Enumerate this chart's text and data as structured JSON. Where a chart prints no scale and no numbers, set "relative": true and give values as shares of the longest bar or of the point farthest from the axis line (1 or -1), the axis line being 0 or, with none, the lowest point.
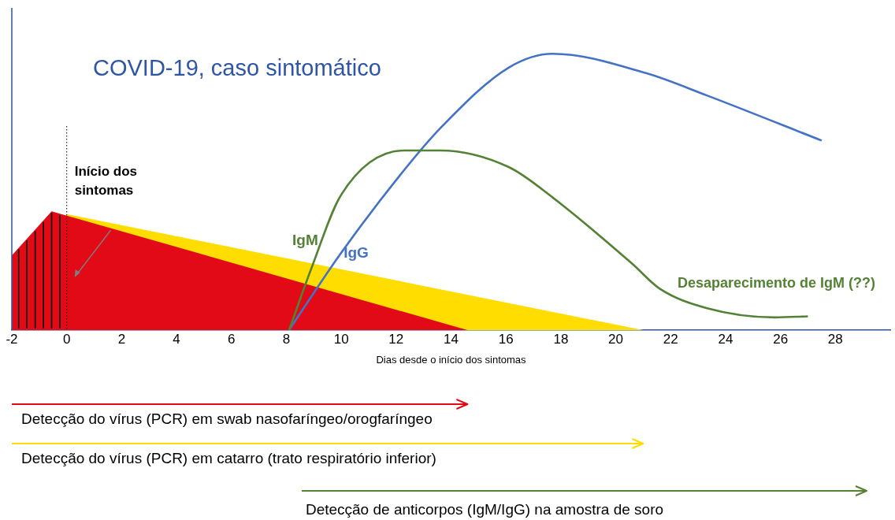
{
  "chart_data": {
    "type": "line",
    "title": "COVID-19, caso sintomático",
    "xlabel": "Dias desde o início dos sintomas",
    "relative": true,
    "xlim": [
      -2,
      30
    ],
    "xticks": [
      -2,
      0,
      2,
      4,
      6,
      8,
      10,
      12,
      14,
      16,
      18,
      20,
      22,
      24,
      26,
      28
    ],
    "series": [
      {
        "type": "area",
        "color": "#e20a16",
        "x": [
          -2,
          -0.55,
          14.6
        ],
        "values": [
          0.27,
          0.43,
          0
        ]
      },
      {
        "type": "area",
        "color": "#ffdd00",
        "x": [
          0,
          21
        ],
        "values": [
          0.42,
          0
        ]
      },
      {
        "type": "line",
        "name": "IgM",
        "color": "#548235",
        "x": [
          8.1,
          8.9,
          10,
          12.3,
          13.6,
          16.1,
          17.7,
          20.6,
          21.6,
          23.3,
          25.8,
          27
        ],
        "values": [
          0,
          0.22,
          0.49,
          0.65,
          0.65,
          0.59,
          0.48,
          0.24,
          0.15,
          0.08,
          0.046,
          0.05
        ]
      },
      {
        "type": "line",
        "name": "IgG",
        "color": "#4472c4",
        "x": [
          8.1,
          10,
          12.3,
          13.7,
          16.1,
          17.7,
          21.1,
          23.3,
          27.5
        ],
        "values": [
          0,
          0.28,
          0.58,
          0.74,
          0.95,
          1,
          0.93,
          0.85,
          0.686
        ]
      }
    ],
    "ref_lines": [
      {
        "axis": "x",
        "value": 0,
        "label": "Início dos sintomas",
        "line_style": "dotted"
      }
    ],
    "annotations": [
      "Desaparecimento de IgM (??)",
      "Detecção do vírus (PCR) em swab nasofaríngeo/orogfaríngeo",
      "Detecção do vírus (PCR) em catarro (trato respiratório inferior)",
      "Detecção de anticorpos (IgM/IgG) na amostra de soro"
    ],
    "marker": "none",
    "legend": false
  }
}
